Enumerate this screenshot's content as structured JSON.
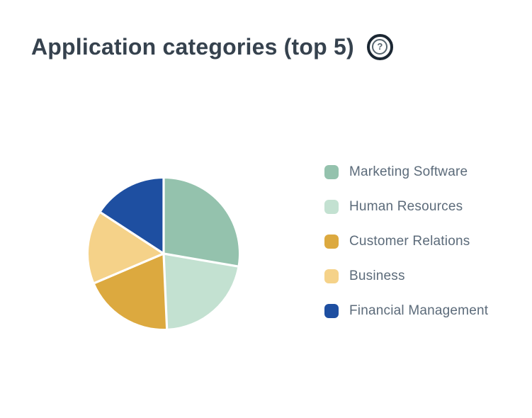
{
  "page": {
    "title": "Application categories (top 5)",
    "help_glyph": "?",
    "background": "#ffffff"
  },
  "chart_data": {
    "type": "pie",
    "title": "Application categories (top 5)",
    "categories": [
      "Marketing Software",
      "Human Resources",
      "Customer Relations",
      "Business",
      "Financial Management"
    ],
    "values": [
      27.7,
      21.6,
      19.3,
      15.6,
      15.8
    ],
    "unit": "percent (estimated from slice angles)",
    "colors": [
      "#94c2ad",
      "#c3e1d1",
      "#dca93f",
      "#f5d289",
      "#1e4fa1"
    ],
    "start_angle_deg": 0,
    "direction": "clockwise",
    "slice_gap_color": "#ffffff",
    "legend_position": "right",
    "data_labels": false
  },
  "colors": {
    "title_text": "#36424e",
    "legend_text": "#5c6b7a",
    "help_icon_outer_ring": "#1b2733",
    "help_icon_inner": "#56656f"
  }
}
